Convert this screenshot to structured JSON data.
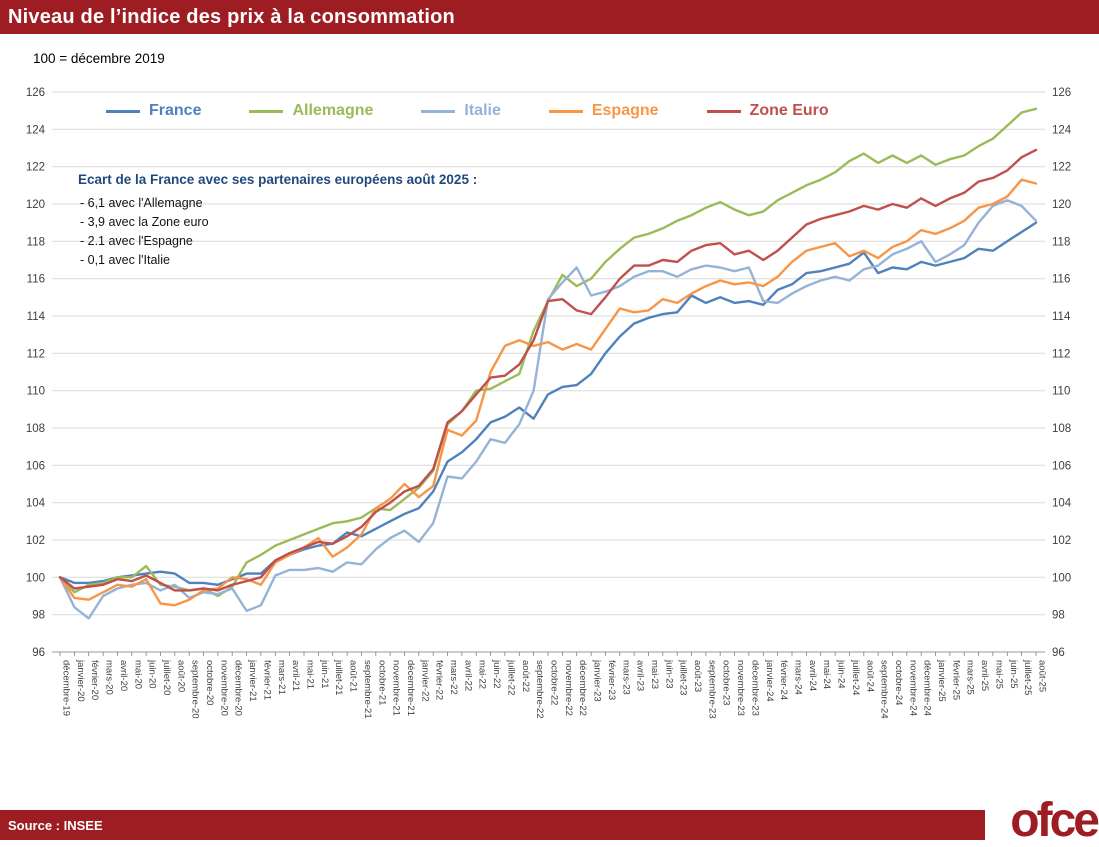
{
  "subtitle": "100 = décembre 2019",
  "annotation": {
    "title": "Ecart de la France avec ses partenaires européens août 2025 :",
    "items": [
      "- 6,1 avec l'Allemagne",
      "- 3,9 avec la Zone euro",
      "- 2.1 avec l'Espagne",
      "- 0,1 avec l'Italie"
    ]
  },
  "footer": {
    "source": "Source : INSEE",
    "logo": "ofce"
  },
  "colors": {
    "accent_red": "#9E1D22",
    "annotation_blue": "#1F497D",
    "grid": "#D9D9D9",
    "axis_text": "#404040"
  },
  "chart_data": {
    "type": "line",
    "title": "Niveau de l’indice des prix à la consommation",
    "xlabel": "",
    "ylabel": "",
    "ylim": [
      96,
      126
    ],
    "ytick_step": 2,
    "grid": true,
    "legend_position": "top",
    "categories": [
      "décembre-19",
      "janvier-20",
      "février-20",
      "mars-20",
      "avril-20",
      "mai-20",
      "juin-20",
      "juillet-20",
      "août-20",
      "septembre-20",
      "octobre-20",
      "novembre-20",
      "décembre-20",
      "janvier-21",
      "février-21",
      "mars-21",
      "avril-21",
      "mai-21",
      "juin-21",
      "juillet-21",
      "août-21",
      "septembre-21",
      "octobre-21",
      "novembre-21",
      "décembre-21",
      "janvier-22",
      "février-22",
      "mars-22",
      "avril-22",
      "mai-22",
      "juin-22",
      "juillet-22",
      "août-22",
      "septembre-22",
      "octobre-22",
      "novembre-22",
      "décembre-22",
      "janvier-23",
      "février-23",
      "mars-23",
      "avril-23",
      "mai-23",
      "juin-23",
      "juillet-23",
      "août-23",
      "septembre-23",
      "octobre-23",
      "novembre-23",
      "décembre-23",
      "janvier-24",
      "février-24",
      "mars-24",
      "avril-24",
      "mai-24",
      "juin-24",
      "juillet-24",
      "août-24",
      "septembre-24",
      "octobre-24",
      "novembre-24",
      "décembre-24",
      "janvier-25",
      "février-25",
      "mars-25",
      "avril-25",
      "mai-25",
      "juin-25",
      "juillet-25",
      "août-25"
    ],
    "series": [
      {
        "name": "France",
        "color": "#4F81BD",
        "values": [
          100.0,
          99.7,
          99.7,
          99.8,
          100.0,
          100.1,
          100.2,
          100.3,
          100.2,
          99.7,
          99.7,
          99.6,
          99.9,
          100.2,
          100.2,
          100.9,
          101.2,
          101.5,
          101.7,
          101.8,
          102.4,
          102.2,
          102.6,
          103.0,
          103.4,
          103.7,
          104.6,
          106.2,
          106.7,
          107.4,
          108.3,
          108.6,
          109.1,
          108.5,
          109.8,
          110.2,
          110.3,
          110.9,
          112.0,
          112.9,
          113.6,
          113.9,
          114.1,
          114.2,
          115.1,
          114.7,
          115.0,
          114.7,
          114.8,
          114.6,
          115.4,
          115.7,
          116.3,
          116.4,
          116.6,
          116.8,
          117.4,
          116.3,
          116.6,
          116.5,
          116.9,
          116.7,
          116.9,
          117.1,
          117.6,
          117.5,
          118.0,
          118.5,
          119.0
        ]
      },
      {
        "name": "Allemagne",
        "color": "#9BBB59",
        "values": [
          100.0,
          99.2,
          99.6,
          99.7,
          100.0,
          100.0,
          100.6,
          99.6,
          99.5,
          99.3,
          99.4,
          99.0,
          99.5,
          100.8,
          101.2,
          101.7,
          102.0,
          102.3,
          102.6,
          102.9,
          103.0,
          103.2,
          103.7,
          103.6,
          104.2,
          104.8,
          105.7,
          108.2,
          108.9,
          110.0,
          110.1,
          110.5,
          110.9,
          113.2,
          114.8,
          116.2,
          115.6,
          116.0,
          116.9,
          117.6,
          118.2,
          118.4,
          118.7,
          119.1,
          119.4,
          119.8,
          120.1,
          119.7,
          119.4,
          119.6,
          120.2,
          120.6,
          121.0,
          121.3,
          121.7,
          122.3,
          122.7,
          122.2,
          122.6,
          122.2,
          122.6,
          122.1,
          122.4,
          122.6,
          123.1,
          123.5,
          124.2,
          124.9,
          125.1
        ]
      },
      {
        "name": "Italie",
        "color": "#95B3D7",
        "values": [
          100.0,
          98.4,
          97.8,
          99.0,
          99.4,
          99.6,
          99.7,
          99.3,
          99.6,
          98.9,
          99.2,
          99.1,
          99.4,
          98.2,
          98.5,
          100.1,
          100.4,
          100.4,
          100.5,
          100.3,
          100.8,
          100.7,
          101.5,
          102.1,
          102.5,
          101.9,
          102.9,
          105.4,
          105.3,
          106.2,
          107.4,
          107.2,
          108.2,
          110.0,
          114.9,
          115.8,
          116.6,
          115.1,
          115.3,
          115.6,
          116.1,
          116.4,
          116.4,
          116.1,
          116.5,
          116.7,
          116.6,
          116.4,
          116.6,
          114.8,
          114.7,
          115.2,
          115.6,
          115.9,
          116.1,
          115.9,
          116.5,
          116.7,
          117.3,
          117.6,
          118.0,
          116.9,
          117.3,
          117.8,
          119.0,
          119.9,
          120.2,
          119.9,
          119.1
        ]
      },
      {
        "name": "Espagne",
        "color": "#F79646",
        "values": [
          100.0,
          98.9,
          98.8,
          99.2,
          99.6,
          99.5,
          99.9,
          98.6,
          98.5,
          98.8,
          99.3,
          99.4,
          100.0,
          99.9,
          99.6,
          100.8,
          101.2,
          101.6,
          102.1,
          101.1,
          101.6,
          102.3,
          103.7,
          104.2,
          105.0,
          104.3,
          104.9,
          107.9,
          107.6,
          108.4,
          111.0,
          112.4,
          112.7,
          112.4,
          112.6,
          112.2,
          112.5,
          112.2,
          113.3,
          114.4,
          114.2,
          114.3,
          114.9,
          114.7,
          115.2,
          115.6,
          115.9,
          115.7,
          115.8,
          115.6,
          116.1,
          116.9,
          117.5,
          117.7,
          117.9,
          117.2,
          117.5,
          117.1,
          117.7,
          118.0,
          118.6,
          118.4,
          118.7,
          119.1,
          119.8,
          120.0,
          120.4,
          121.3,
          121.1
        ]
      },
      {
        "name": "Zone Euro",
        "color": "#C0504D",
        "values": [
          100.0,
          99.4,
          99.5,
          99.6,
          99.9,
          99.8,
          100.1,
          99.7,
          99.3,
          99.3,
          99.4,
          99.3,
          99.6,
          99.8,
          100.0,
          100.9,
          101.3,
          101.6,
          101.9,
          101.8,
          102.2,
          102.7,
          103.5,
          104.0,
          104.6,
          104.9,
          105.8,
          108.3,
          108.9,
          109.8,
          110.7,
          110.8,
          111.4,
          112.7,
          114.8,
          114.9,
          114.3,
          114.1,
          115.0,
          116.0,
          116.7,
          116.7,
          117.0,
          116.9,
          117.5,
          117.8,
          117.9,
          117.3,
          117.5,
          117.0,
          117.5,
          118.2,
          118.9,
          119.2,
          119.4,
          119.6,
          119.9,
          119.7,
          120.0,
          119.8,
          120.3,
          119.9,
          120.3,
          120.6,
          121.2,
          121.4,
          121.8,
          122.5,
          122.9
        ]
      }
    ]
  }
}
